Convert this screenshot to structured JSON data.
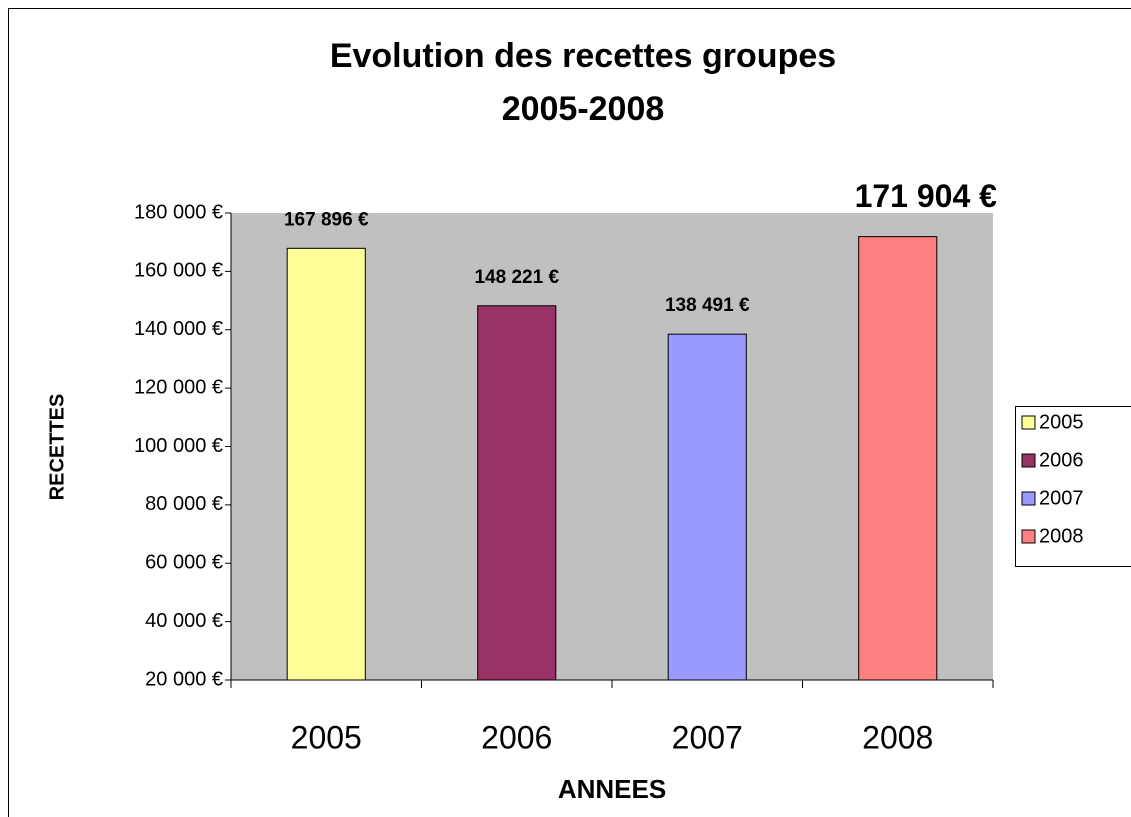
{
  "chart_data": {
    "type": "bar",
    "title": [
      "Evolution des recettes groupes",
      "2005-2008"
    ],
    "x_label": "ANNEES",
    "y_label": "RECETTES",
    "categories": [
      "2005",
      "2006",
      "2007",
      "2008"
    ],
    "values": [
      167896,
      148221,
      138491,
      171904
    ],
    "value_labels": [
      "167 896 €",
      "148 221 €",
      "138 491 €",
      "171 904 €"
    ],
    "colors": [
      "#ffff99",
      "#993366",
      "#9999ff",
      "#ff8080"
    ],
    "ylim": [
      20000,
      180000
    ],
    "yticks": [
      {
        "value": 20000,
        "label": "20 000 €"
      },
      {
        "value": 40000,
        "label": "40 000 €"
      },
      {
        "value": 60000,
        "label": "60 000 €"
      },
      {
        "value": 80000,
        "label": "80 000 €"
      },
      {
        "value": 100000,
        "label": "100 000 €"
      },
      {
        "value": 120000,
        "label": "120 000 €"
      },
      {
        "value": 140000,
        "label": "140 000 €"
      },
      {
        "value": 160000,
        "label": "160 000 €"
      },
      {
        "value": 180000,
        "label": "180 000 €"
      }
    ],
    "legend": "right"
  }
}
